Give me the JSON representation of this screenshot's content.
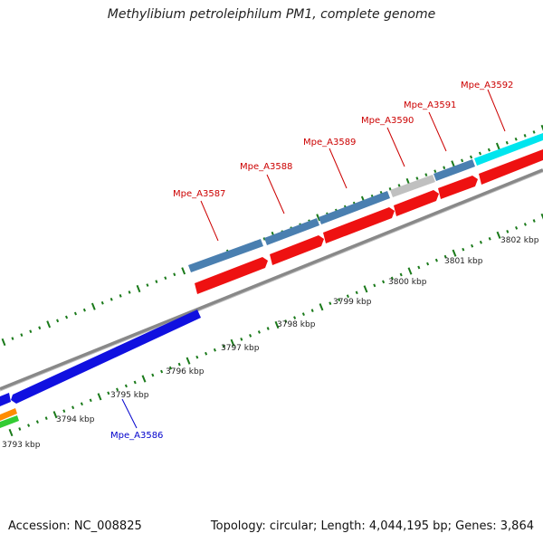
{
  "title": "Methylibium petroleiphilum PM1, complete genome",
  "footer": {
    "accession": "Accession: NC_008825",
    "summary": "Topology: circular; Length: 4,044,195 bp; Genes: 3,864"
  },
  "colors": {
    "forward_cds": "#4a7fb0",
    "reverse_cds": "#ee1111",
    "blue_cds": "#1010e0",
    "cyan_cds": "#00e5ee",
    "grey_cds": "#c0c0c0",
    "backbone": "#888888",
    "tick": "#1a7a1a",
    "label_red": "#cc0000",
    "label_blue": "#0000cc"
  },
  "kbp_labels": [
    "3793 kbp",
    "3794 kbp",
    "3795 kbp",
    "3796 kbp",
    "3797 kbp",
    "3798 kbp",
    "3799 kbp",
    "3800 kbp",
    "3801 kbp",
    "3802 kbp"
  ],
  "gene_labels": [
    {
      "text": "Mpe_A3586",
      "color": "blue"
    },
    {
      "text": "Mpe_A3587",
      "color": "red"
    },
    {
      "text": "Mpe_A3588",
      "color": "red"
    },
    {
      "text": "Mpe_A3589",
      "color": "red"
    },
    {
      "text": "Mpe_A3590",
      "color": "red"
    },
    {
      "text": "Mpe_A3591",
      "color": "red"
    },
    {
      "text": "Mpe_A3592",
      "color": "red"
    }
  ]
}
